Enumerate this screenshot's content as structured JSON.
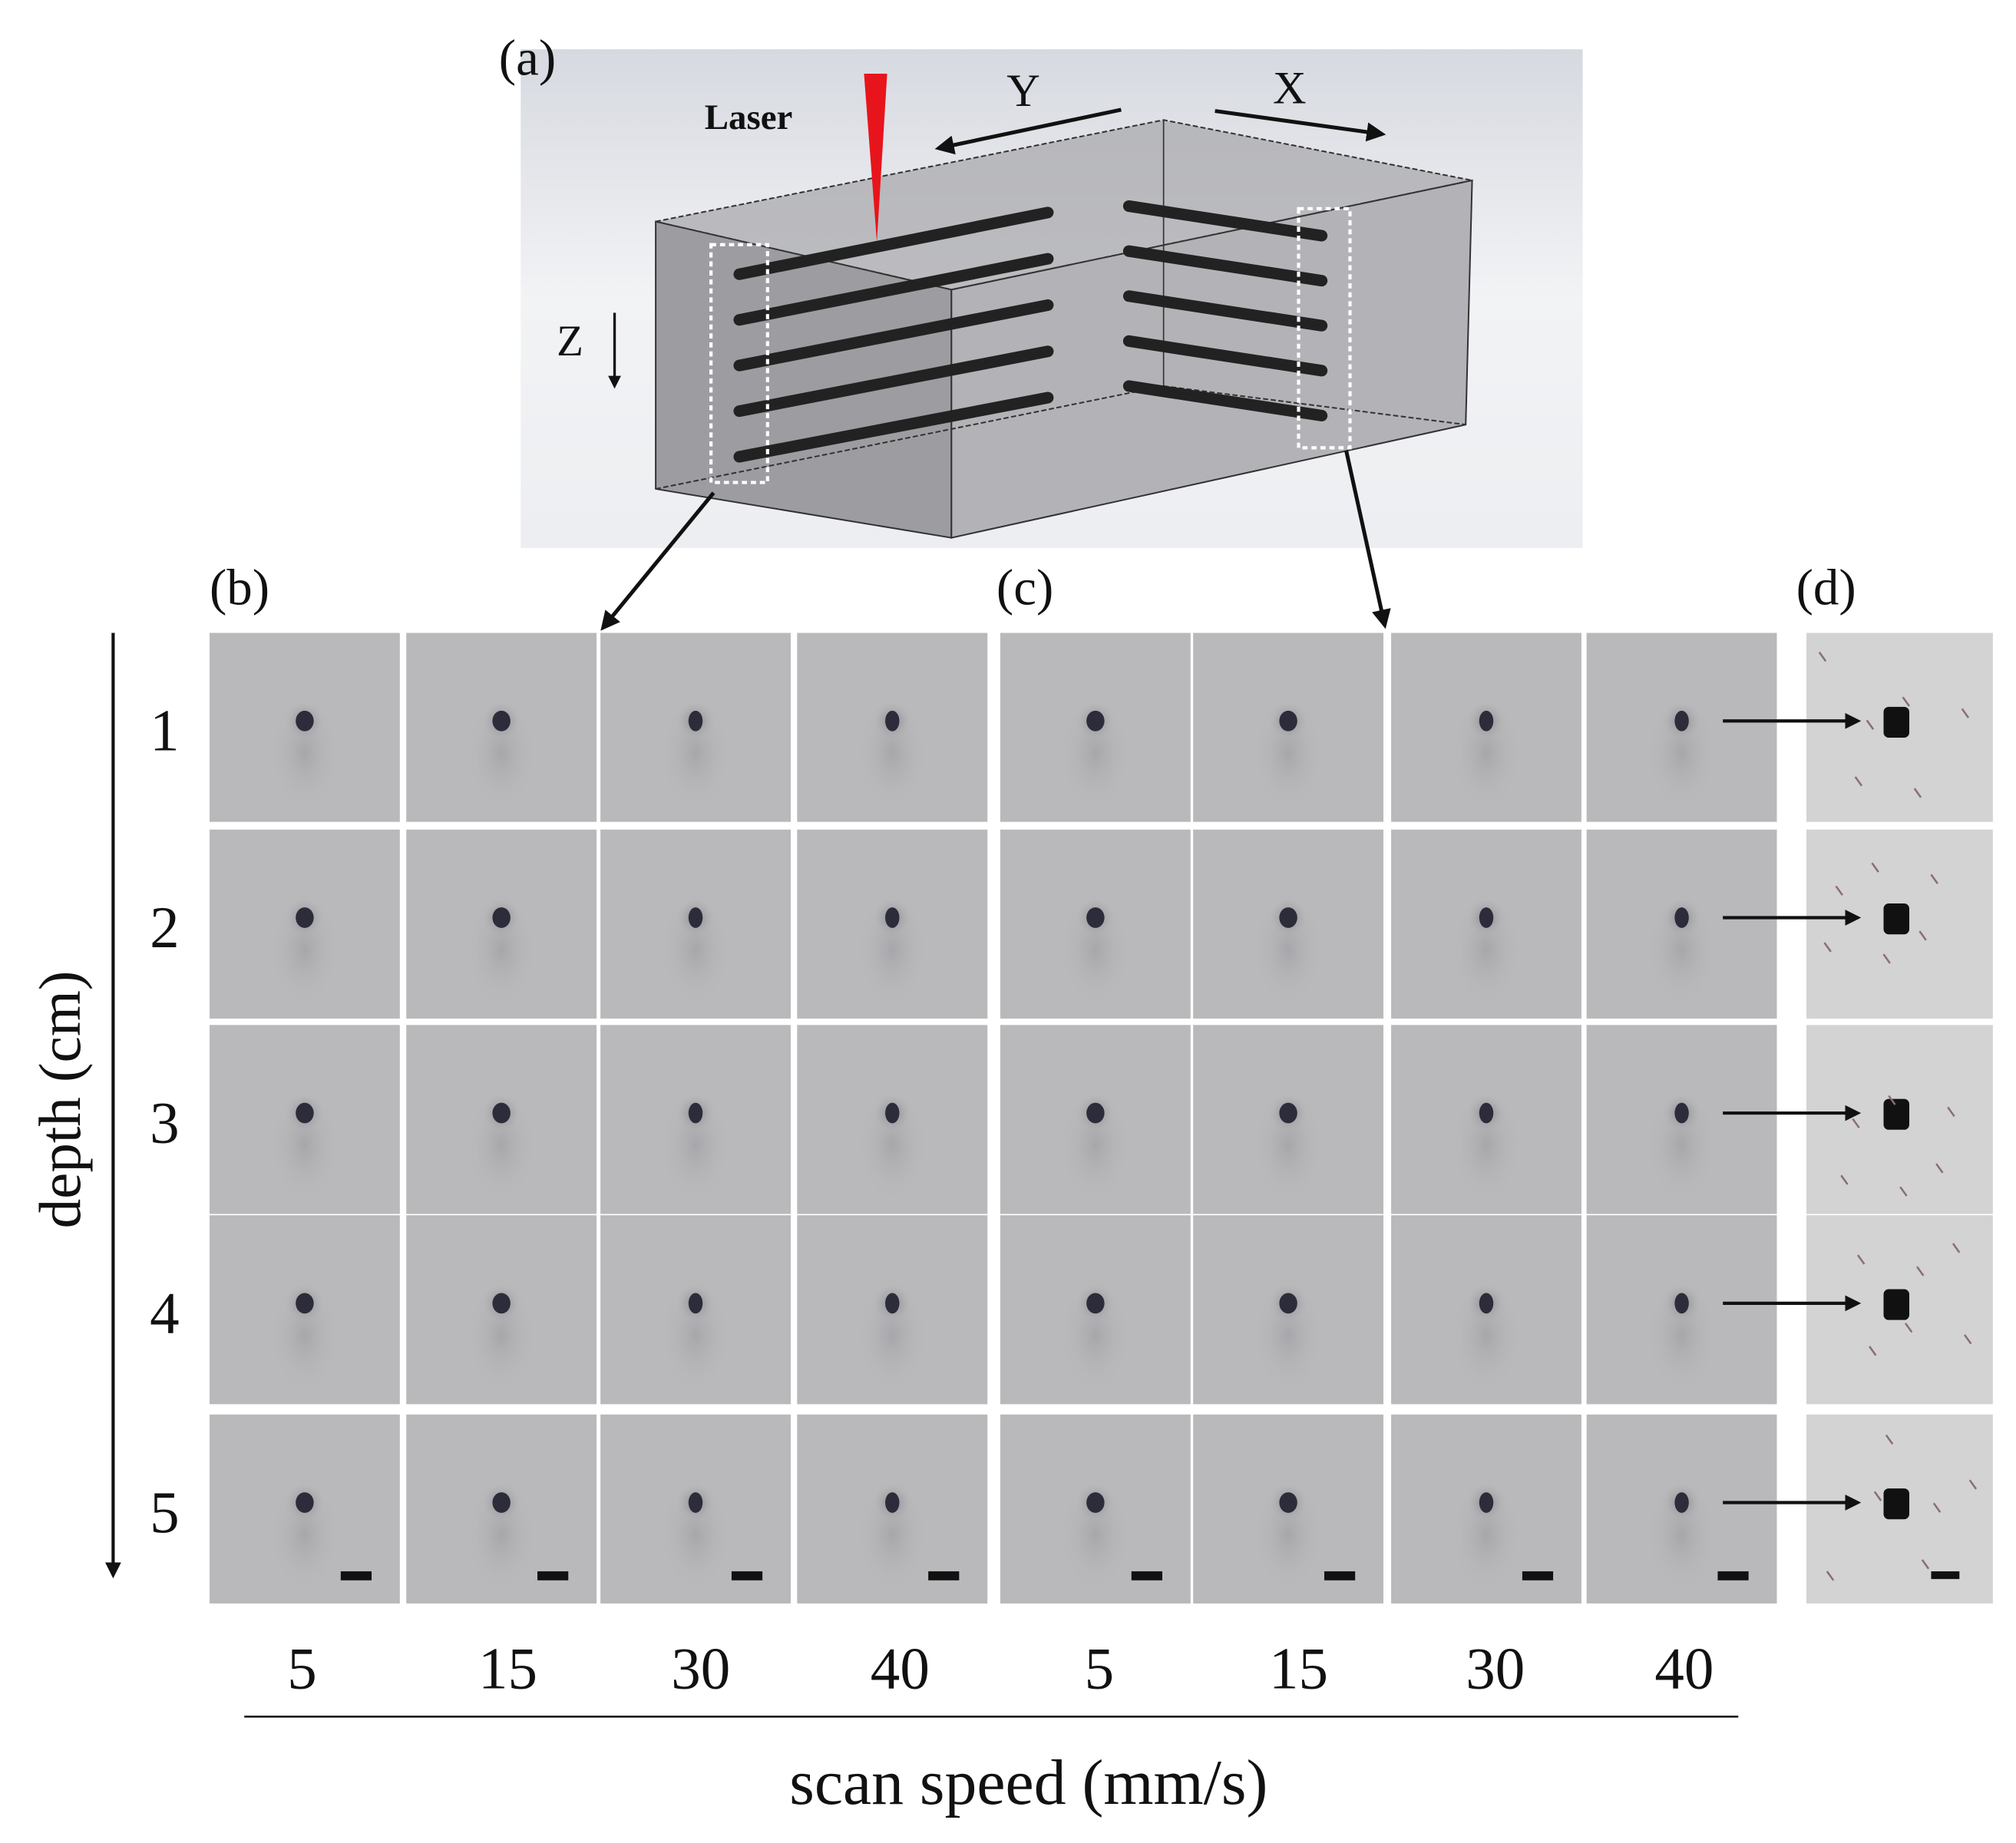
{
  "panel_a": {
    "label": "(a)",
    "laser_label": "Laser",
    "axis_x": "X",
    "axis_y": "Y",
    "axis_z": "Z",
    "laser_color": "#e8141b",
    "channel_count_per_face": 5
  },
  "panel_b": {
    "label": "(b)"
  },
  "panel_c": {
    "label": "(c)"
  },
  "panel_d": {
    "label": "(d)"
  },
  "grid": {
    "depth_axis_label": "depth (cm)",
    "depths": [
      "1",
      "2",
      "3",
      "4",
      "5"
    ],
    "scan_speed_axis_label": "scan speed (mm/s)",
    "speeds_b": [
      "5",
      "15",
      "30",
      "40"
    ],
    "speeds_c": [
      "5",
      "15",
      "30",
      "40"
    ]
  },
  "colors": {
    "tile_bg": "#b9b9bb",
    "tile_d_bg": "#d2d3d2",
    "spot": "#2c2c3a"
  }
}
